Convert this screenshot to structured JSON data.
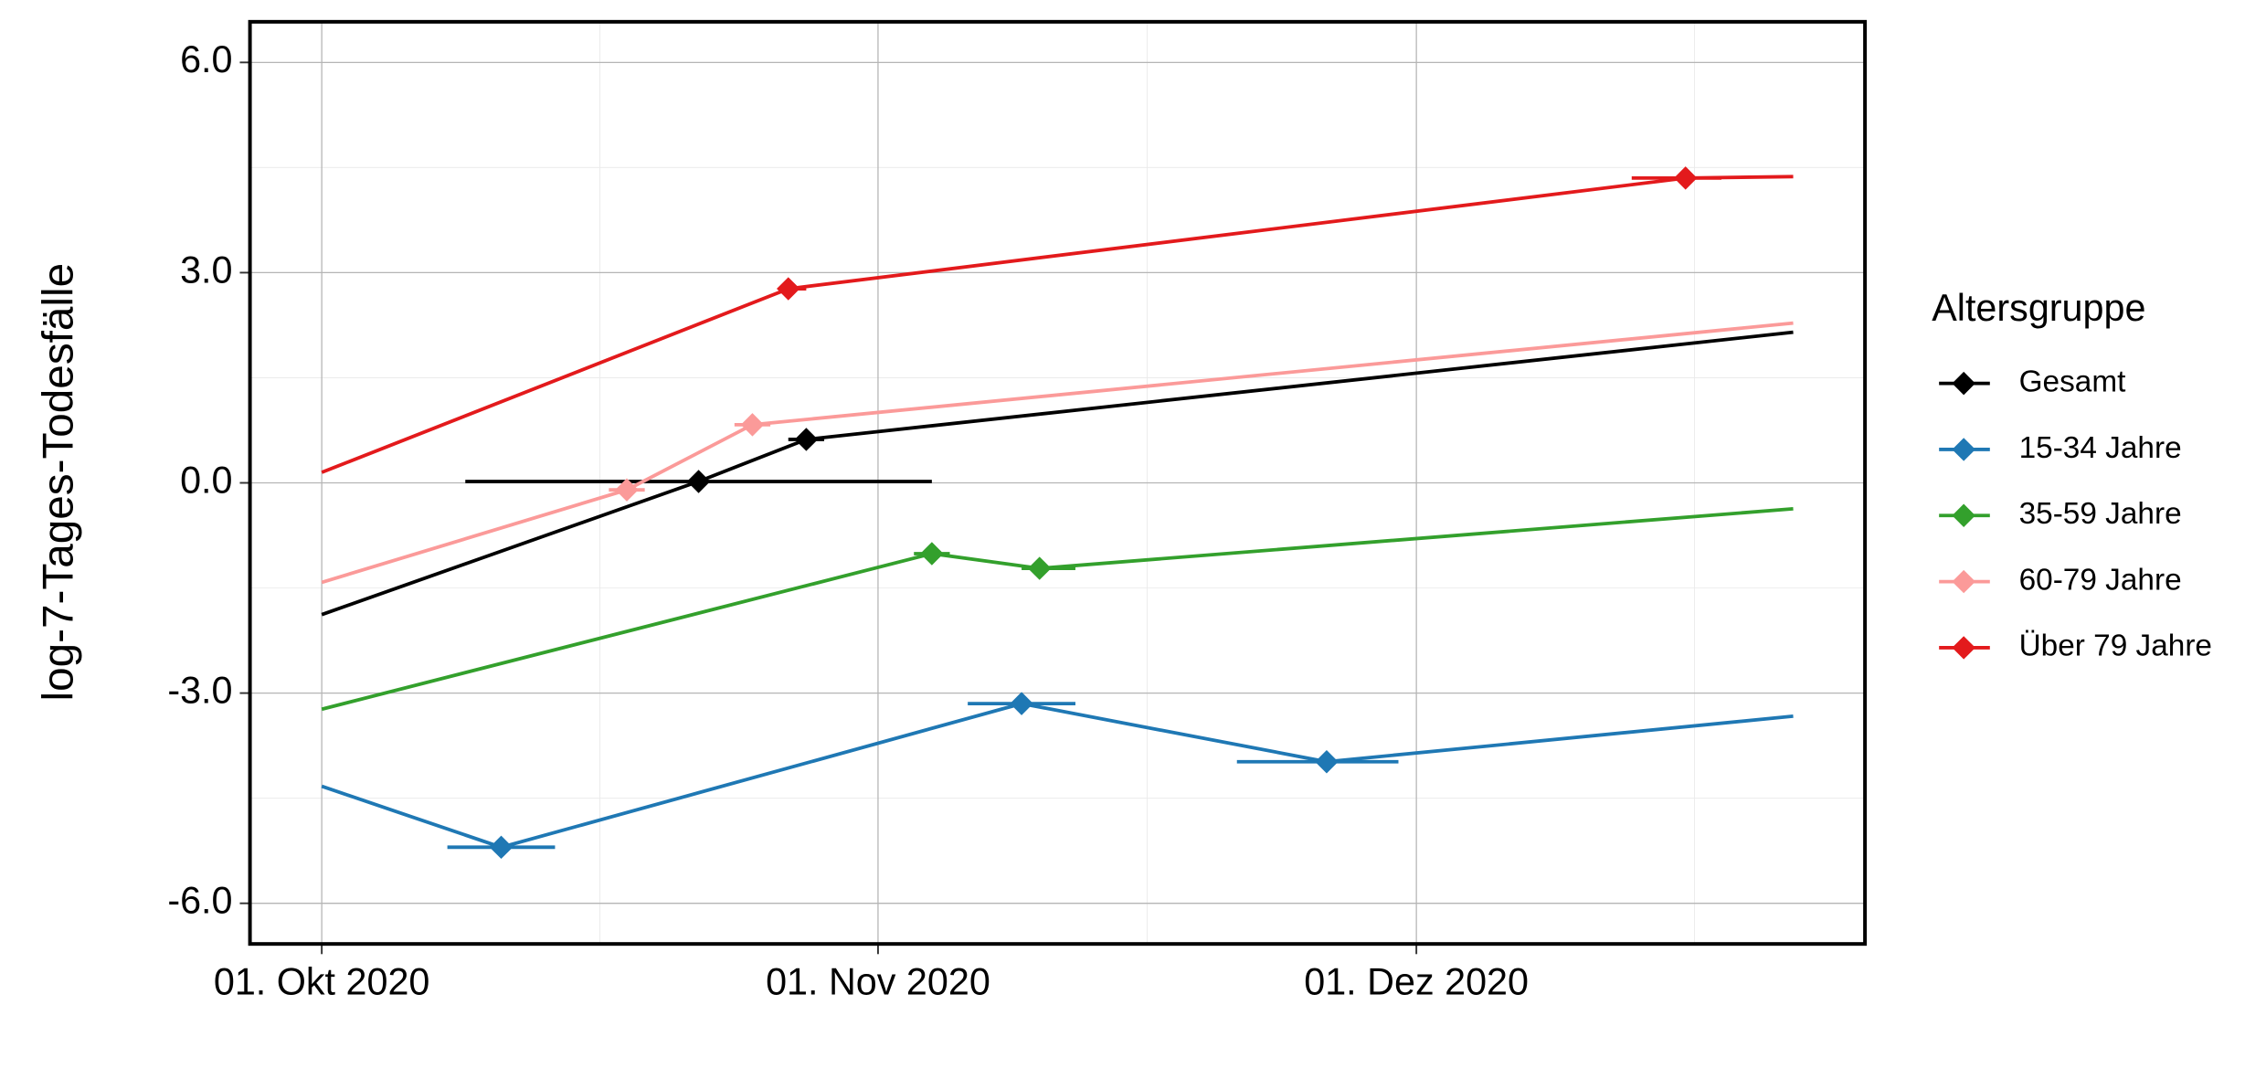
{
  "chart_data": {
    "type": "line",
    "y_label": "log-7-Tages-Todesfälle",
    "legend_title": "Altersgruppe",
    "legend_position": "right",
    "grid": true,
    "xlim": [
      "2020-09-27",
      "2020-12-26"
    ],
    "xticks": [
      {
        "value": "2020-10-01",
        "label": "01. Okt 2020"
      },
      {
        "value": "2020-11-01",
        "label": "01. Nov 2020"
      },
      {
        "value": "2020-12-01",
        "label": "01. Dez 2020"
      }
    ],
    "ylim": [
      -6.58,
      6.58
    ],
    "yticks": [
      {
        "value": -6,
        "label": "-6.0"
      },
      {
        "value": -3,
        "label": "-3.0"
      },
      {
        "value": 0,
        "label": "0.0"
      },
      {
        "value": 3,
        "label": "3.0"
      },
      {
        "value": 6,
        "label": "6.0"
      }
    ],
    "series": [
      {
        "name": "Gesamt",
        "color": "#000000",
        "x": [
          "2020-10-01",
          "2020-10-22",
          "2020-10-28",
          "2020-12-22"
        ],
        "values": [
          -1.88,
          0.02,
          0.62,
          2.15
        ],
        "breakpoints": {
          "x": [
            "2020-10-22",
            "2020-10-28"
          ],
          "values": [
            0.02,
            0.62
          ],
          "ci_lower": [
            "2020-10-09",
            "2020-10-27"
          ],
          "ci_upper": [
            "2020-11-04",
            "2020-10-29"
          ]
        }
      },
      {
        "name": "15-34 Jahre",
        "color": "#1f78b4",
        "x": [
          "2020-10-01",
          "2020-10-11",
          "2020-11-09",
          "2020-11-26",
          "2020-12-22"
        ],
        "values": [
          -4.33,
          -5.2,
          -3.15,
          -3.98,
          -3.33
        ],
        "breakpoints": {
          "x": [
            "2020-10-11",
            "2020-11-09",
            "2020-11-26"
          ],
          "values": [
            -5.2,
            -3.15,
            -3.98
          ],
          "ci_lower": [
            "2020-10-08",
            "2020-11-06",
            "2020-11-21"
          ],
          "ci_upper": [
            "2020-10-14",
            "2020-11-12",
            "2020-11-30"
          ]
        }
      },
      {
        "name": "35-59 Jahre",
        "color": "#33a02c",
        "x": [
          "2020-10-01",
          "2020-11-04",
          "2020-11-10",
          "2020-12-22"
        ],
        "values": [
          -3.23,
          -1.01,
          -1.22,
          -0.37
        ],
        "breakpoints": {
          "x": [
            "2020-11-04",
            "2020-11-10"
          ],
          "values": [
            -1.01,
            -1.22
          ],
          "ci_lower": [
            "2020-11-03",
            "2020-11-09"
          ],
          "ci_upper": [
            "2020-11-05",
            "2020-11-12"
          ]
        }
      },
      {
        "name": "60-79 Jahre",
        "color": "#fb9a99",
        "x": [
          "2020-10-01",
          "2020-10-18",
          "2020-10-25",
          "2020-12-22"
        ],
        "values": [
          -1.42,
          -0.1,
          0.83,
          2.28
        ],
        "breakpoints": {
          "x": [
            "2020-10-18",
            "2020-10-25"
          ],
          "values": [
            -0.1,
            0.83
          ],
          "ci_lower": [
            "2020-10-17",
            "2020-10-24"
          ],
          "ci_upper": [
            "2020-10-19",
            "2020-10-26"
          ]
        }
      },
      {
        "name": "Über 79 Jahre",
        "color": "#e31a1c",
        "x": [
          "2020-10-01",
          "2020-10-27",
          "2020-12-16",
          "2020-12-22"
        ],
        "values": [
          0.15,
          2.77,
          4.35,
          4.37
        ],
        "breakpoints": {
          "x": [
            "2020-10-27",
            "2020-12-16"
          ],
          "values": [
            2.77,
            4.35
          ],
          "ci_lower": [
            "2020-10-27",
            "2020-12-13"
          ],
          "ci_upper": [
            "2020-10-28",
            "2020-12-18"
          ]
        }
      }
    ]
  }
}
